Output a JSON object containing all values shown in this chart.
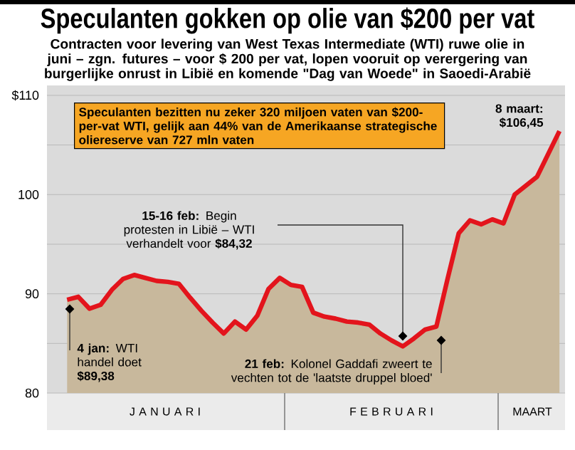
{
  "chart_data": {
    "type": "area",
    "title": "Speculanten gokken op olie van $200 per vat",
    "subtitle": "Contracten voor levering van West Texas Intermediate (WTI) ruwe olie in juni – zgn. futures – voor $ 200 per vat, lopen vooruit op verergering van burgerlijke onrust in Libië en komende \"Dag van Woede\" in Saoedi-Arabië",
    "categories": [
      null,
      null,
      null,
      null,
      null,
      null,
      null,
      null,
      null,
      null,
      null,
      null,
      null,
      null,
      null,
      null,
      null,
      null,
      null,
      null,
      null,
      null,
      null,
      null,
      null,
      null,
      null,
      null,
      null,
      null,
      null,
      null,
      null,
      null,
      null,
      null,
      null,
      null,
      null,
      null,
      null,
      null,
      null,
      null,
      null
    ],
    "series": [
      {
        "color": "#e3141c",
        "values": [
          89.4,
          89.7,
          88.5,
          88.9,
          90.4,
          91.5,
          91.9,
          91.6,
          91.3,
          91.2,
          91.0,
          89.6,
          88.3,
          87.1,
          86.0,
          87.2,
          86.4,
          87.8,
          90.5,
          91.6,
          90.9,
          90.7,
          88.1,
          87.7,
          87.5,
          87.2,
          87.1,
          86.9,
          86.0,
          85.3,
          84.7,
          85.5,
          86.4,
          86.7,
          91.5,
          96.1,
          97.4,
          97.0,
          97.5,
          97.1,
          100.0,
          100.9,
          101.8,
          104.1,
          106.4
        ]
      }
    ],
    "ylim": [
      80,
      111
    ],
    "yticks": [
      80,
      {
        "value": 85,
        "label": null
      },
      90,
      {
        "value": 95,
        "label": null
      },
      100,
      {
        "value": 105,
        "label": null
      },
      {
        "value": 110,
        "label": "$110"
      }
    ],
    "grid": "y",
    "annotations": [
      "Speculanten bezitten nu zeker 320 miljoen vaten van $200-per-vat WTI, gelijk aan 44% van de Amerikaanse strategische oliereserve van 727 mln vaten",
      "8 maart: $106,45",
      "**15-16 feb:** Begin protesten in Libië – WTI verhandelt voor **$84,32**",
      "**21 feb:** Kolonel Gaddafi zweert te vechten tot de 'laatste druppel bloed'",
      "**4 jan:** WTI handel doet **$89,38**",
      "J A N U A R I",
      "F E B R U A R I",
      "MAART"
    ]
  }
}
